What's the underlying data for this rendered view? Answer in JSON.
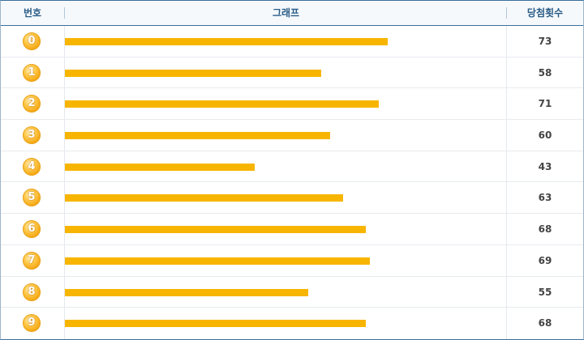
{
  "header": {
    "col_number": "번호",
    "col_graph": "그래프",
    "col_count": "당첨횟수"
  },
  "colors": {
    "bar": "#f7b500",
    "ball": "#f3a10a",
    "header_text": "#2a5b86"
  },
  "chart_data": {
    "type": "bar",
    "orientation": "horizontal",
    "categories": [
      "0",
      "1",
      "2",
      "3",
      "4",
      "5",
      "6",
      "7",
      "8",
      "9"
    ],
    "values": [
      73,
      58,
      71,
      60,
      43,
      63,
      68,
      69,
      55,
      68
    ],
    "xlim": [
      0,
      100
    ],
    "grid": false
  }
}
